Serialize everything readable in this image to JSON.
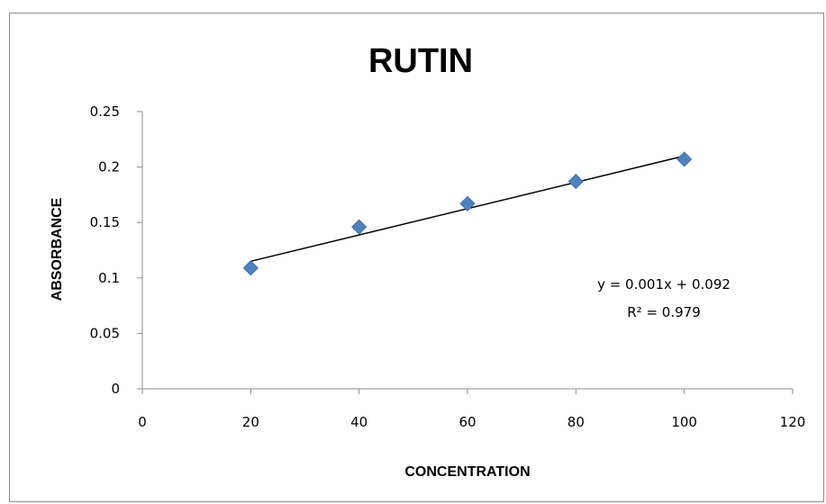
{
  "chart_data": {
    "type": "scatter",
    "title": "RUTIN",
    "xlabel": "CONCENTRATION",
    "ylabel": "ABSORBANCE",
    "xlim": [
      0,
      120
    ],
    "ylim": [
      0,
      0.25
    ],
    "x_ticks": [
      "0",
      "20",
      "40",
      "60",
      "80",
      "100",
      "120"
    ],
    "y_ticks": [
      "0",
      "0.05",
      "0.1",
      "0.15",
      "0.2",
      "0.25"
    ],
    "grid": false,
    "legend": "none",
    "series": [
      {
        "x": [
          20,
          40,
          60,
          80,
          100
        ],
        "y": [
          0.109,
          0.146,
          0.167,
          0.187,
          0.207
        ],
        "marker": "diamond",
        "color": "#4f81bd"
      }
    ],
    "trendline": {
      "type": "linear",
      "x_range": [
        20,
        100
      ],
      "y_start": 0.115,
      "y_end": 0.21,
      "color": "#000000",
      "equation": "y = 0.001x + 0.092",
      "r_squared": "R² = 0.979"
    }
  }
}
